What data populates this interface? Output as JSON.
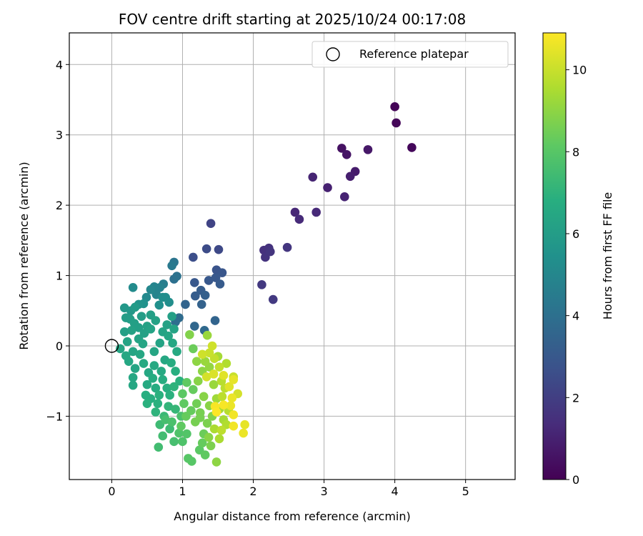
{
  "chart_data": {
    "type": "scatter",
    "title": "FOV centre drift starting at 2025/10/24 00:17:08",
    "xlabel": "Angular distance from reference (arcmin)",
    "ylabel": "Rotation from reference (arcmin)",
    "xlim": [
      -0.6,
      5.7
    ],
    "ylim": [
      -1.9,
      4.45
    ],
    "xticks": [
      0,
      1,
      2,
      3,
      4,
      5
    ],
    "xtick_labels": [
      "0",
      "1",
      "2",
      "3",
      "4",
      "5"
    ],
    "yticks": [
      -1,
      0,
      1,
      2,
      3,
      4
    ],
    "ytick_labels": [
      "−1",
      "0",
      "1",
      "2",
      "3",
      "4"
    ],
    "grid": true,
    "legend": {
      "position": "top-right",
      "entries": [
        {
          "label": "Reference platepar",
          "marker": "open-circle",
          "x": 0,
          "y": 0
        }
      ]
    },
    "colorbar": {
      "label": "Hours from first FF file",
      "colormap": "viridis",
      "range": [
        0,
        10.9
      ],
      "ticks": [
        0,
        2,
        4,
        6,
        8,
        10
      ],
      "tick_labels": [
        "0",
        "2",
        "4",
        "6",
        "8",
        "10"
      ]
    },
    "series": [
      {
        "points": [
          [
            4.0,
            3.4,
            0.1
          ],
          [
            4.02,
            3.17,
            0.15
          ],
          [
            4.24,
            2.82,
            0.2
          ],
          [
            3.25,
            2.81,
            0.5
          ],
          [
            3.32,
            2.72,
            0.6
          ],
          [
            3.62,
            2.79,
            0.7
          ],
          [
            3.44,
            2.48,
            0.8
          ],
          [
            3.37,
            2.41,
            0.9
          ],
          [
            3.05,
            2.25,
            1.0
          ],
          [
            3.29,
            2.12,
            1.05
          ],
          [
            2.84,
            2.4,
            1.1
          ],
          [
            2.59,
            1.9,
            1.2
          ],
          [
            2.89,
            1.9,
            1.25
          ],
          [
            2.65,
            1.8,
            1.3
          ],
          [
            2.15,
            1.36,
            1.5
          ],
          [
            2.22,
            1.39,
            1.55
          ],
          [
            2.17,
            1.26,
            1.6
          ],
          [
            2.24,
            1.34,
            1.65
          ],
          [
            2.48,
            1.4,
            1.7
          ],
          [
            2.12,
            0.87,
            1.8
          ],
          [
            2.28,
            0.66,
            1.85
          ],
          [
            1.4,
            1.74,
            2.2
          ],
          [
            1.51,
            1.37,
            2.4
          ],
          [
            1.34,
            1.38,
            2.5
          ],
          [
            1.15,
            1.26,
            2.6
          ],
          [
            1.48,
            1.08,
            2.8
          ],
          [
            1.56,
            1.04,
            2.9
          ],
          [
            1.47,
            0.97,
            3.0
          ],
          [
            1.37,
            0.93,
            3.0
          ],
          [
            1.53,
            0.88,
            3.1
          ],
          [
            1.17,
            0.9,
            3.0
          ],
          [
            1.26,
            0.79,
            3.2
          ],
          [
            1.32,
            0.72,
            3.3
          ],
          [
            1.18,
            0.71,
            3.2
          ],
          [
            1.27,
            0.59,
            3.4
          ],
          [
            1.04,
            0.59,
            3.5
          ],
          [
            1.46,
            0.36,
            3.5
          ],
          [
            1.17,
            0.28,
            3.6
          ],
          [
            1.31,
            0.22,
            3.7
          ],
          [
            0.95,
            0.4,
            3.8
          ],
          [
            0.9,
            0.34,
            3.9
          ],
          [
            0.88,
            0.95,
            4.0
          ],
          [
            0.92,
            0.99,
            4.1
          ],
          [
            0.88,
            1.19,
            4.2
          ],
          [
            0.85,
            1.14,
            4.4
          ],
          [
            0.73,
            0.88,
            4.6
          ],
          [
            0.68,
            0.83,
            4.8
          ],
          [
            0.63,
            0.73,
            4.9
          ],
          [
            0.55,
            0.8,
            5.0
          ],
          [
            0.6,
            0.84,
            4.9
          ],
          [
            0.49,
            0.69,
            5.1
          ],
          [
            0.3,
            0.83,
            5.2
          ],
          [
            0.76,
            0.69,
            5.3
          ],
          [
            0.81,
            0.62,
            5.3
          ],
          [
            0.72,
            0.69,
            5.3
          ],
          [
            0.67,
            0.58,
            5.4
          ],
          [
            0.45,
            0.6,
            5.5
          ],
          [
            0.38,
            0.59,
            5.6
          ],
          [
            0.18,
            0.54,
            5.8
          ],
          [
            0.27,
            0.5,
            5.8
          ],
          [
            0.33,
            0.55,
            5.9
          ],
          [
            0.2,
            0.4,
            6.0
          ],
          [
            0.26,
            0.38,
            6.0
          ],
          [
            0.32,
            0.32,
            6.1
          ],
          [
            0.18,
            0.2,
            6.1
          ],
          [
            0.28,
            0.22,
            6.2
          ],
          [
            0.22,
            0.06,
            6.3
          ],
          [
            0.38,
            0.1,
            6.3
          ],
          [
            0.46,
            0.18,
            6.2
          ],
          [
            0.55,
            0.24,
            6.3
          ],
          [
            0.44,
            0.03,
            6.4
          ],
          [
            0.3,
            -0.08,
            6.4
          ],
          [
            0.12,
            -0.04,
            6.4
          ],
          [
            0.2,
            -0.14,
            6.5
          ],
          [
            0.24,
            -0.22,
            6.5
          ],
          [
            0.4,
            -0.12,
            6.5
          ],
          [
            0.33,
            -0.32,
            6.4
          ],
          [
            0.3,
            -0.45,
            6.5
          ],
          [
            0.3,
            -0.56,
            6.5
          ],
          [
            0.45,
            -0.25,
            6.6
          ],
          [
            0.52,
            -0.38,
            6.5
          ],
          [
            0.6,
            -0.28,
            6.6
          ],
          [
            0.5,
            -0.55,
            6.6
          ],
          [
            0.58,
            -0.46,
            6.7
          ],
          [
            0.62,
            -0.6,
            6.7
          ],
          [
            0.48,
            -0.7,
            6.8
          ],
          [
            0.55,
            -0.75,
            6.8
          ],
          [
            0.65,
            -0.82,
            6.9
          ],
          [
            0.5,
            -0.82,
            6.9
          ],
          [
            0.62,
            -0.94,
            7.0
          ],
          [
            0.67,
            -0.7,
            6.9
          ],
          [
            0.72,
            -0.48,
            6.7
          ],
          [
            0.78,
            -0.6,
            6.8
          ],
          [
            0.82,
            -0.7,
            6.9
          ],
          [
            0.7,
            -0.36,
            6.6
          ],
          [
            0.75,
            -0.2,
            6.5
          ],
          [
            0.6,
            -0.08,
            6.4
          ],
          [
            0.68,
            0.04,
            6.3
          ],
          [
            0.55,
            0.44,
            6.1
          ],
          [
            0.62,
            0.36,
            6.2
          ],
          [
            0.5,
            0.28,
            6.2
          ],
          [
            0.42,
            0.42,
            6.0
          ],
          [
            0.38,
            0.26,
            6.1
          ],
          [
            0.72,
            0.2,
            6.3
          ],
          [
            0.78,
            0.3,
            6.2
          ],
          [
            0.85,
            0.42,
            6.1
          ],
          [
            0.88,
            0.24,
            6.3
          ],
          [
            0.8,
            0.14,
            6.4
          ],
          [
            0.86,
            0.04,
            6.5
          ],
          [
            0.92,
            -0.08,
            6.6
          ],
          [
            0.84,
            -0.24,
            6.7
          ],
          [
            0.9,
            -0.36,
            6.8
          ],
          [
            0.96,
            -0.5,
            6.9
          ],
          [
            0.88,
            -0.58,
            7.0
          ],
          [
            0.8,
            -0.86,
            7.1
          ],
          [
            0.9,
            -0.9,
            7.2
          ],
          [
            0.74,
            -1.0,
            7.3
          ],
          [
            0.68,
            -1.12,
            7.4
          ],
          [
            0.82,
            -1.18,
            7.4
          ],
          [
            0.72,
            -1.28,
            7.5
          ],
          [
            0.66,
            -1.44,
            7.5
          ],
          [
            0.88,
            -1.36,
            7.6
          ],
          [
            0.76,
            -1.05,
            7.6
          ],
          [
            0.85,
            -1.08,
            7.7
          ],
          [
            0.98,
            -1.0,
            7.7
          ],
          [
            0.95,
            -1.24,
            7.8
          ],
          [
            1.0,
            -1.36,
            7.8
          ],
          [
            1.06,
            -1.25,
            7.9
          ],
          [
            1.08,
            -1.6,
            8.0
          ],
          [
            1.13,
            -1.64,
            8.0
          ],
          [
            1.24,
            -1.48,
            8.1
          ],
          [
            1.32,
            -1.55,
            8.2
          ],
          [
            1.28,
            -1.38,
            8.3
          ],
          [
            1.3,
            -1.25,
            8.4
          ],
          [
            0.98,
            -1.14,
            8.2
          ],
          [
            1.05,
            -1.0,
            8.3
          ],
          [
            1.12,
            -0.92,
            8.3
          ],
          [
            1.02,
            -0.82,
            8.2
          ],
          [
            1.0,
            -0.68,
            8.1
          ],
          [
            1.06,
            -0.52,
            8.2
          ],
          [
            1.15,
            -0.62,
            8.3
          ],
          [
            1.2,
            -0.82,
            8.5
          ],
          [
            1.25,
            -0.95,
            8.6
          ],
          [
            1.18,
            -1.08,
            8.6
          ],
          [
            1.35,
            -1.1,
            8.7
          ],
          [
            1.42,
            -1.0,
            8.8
          ],
          [
            1.38,
            -0.85,
            8.9
          ],
          [
            1.3,
            -0.72,
            8.9
          ],
          [
            1.22,
            -0.5,
            8.9
          ],
          [
            1.28,
            -0.36,
            9.0
          ],
          [
            1.2,
            -0.22,
            9.0
          ],
          [
            1.15,
            -0.04,
            8.4
          ],
          [
            1.38,
            -0.3,
            9.1
          ],
          [
            1.44,
            -0.55,
            9.2
          ],
          [
            1.48,
            -0.75,
            9.3
          ],
          [
            1.52,
            -0.9,
            9.4
          ],
          [
            1.58,
            -1.05,
            9.4
          ],
          [
            1.45,
            -1.18,
            9.5
          ],
          [
            1.52,
            -1.32,
            9.5
          ],
          [
            1.62,
            -1.12,
            9.6
          ],
          [
            1.65,
            -0.92,
            9.7
          ],
          [
            1.56,
            -0.72,
            9.8
          ],
          [
            1.6,
            -0.6,
            9.8
          ],
          [
            1.55,
            -0.5,
            9.7
          ],
          [
            1.52,
            -0.3,
            9.9
          ],
          [
            1.45,
            -0.18,
            9.9
          ],
          [
            1.38,
            -0.1,
            10.0
          ],
          [
            1.28,
            -0.12,
            10.1
          ],
          [
            1.42,
            0.0,
            10.1
          ],
          [
            1.35,
            0.15,
            9.2
          ],
          [
            1.1,
            0.16,
            8.8
          ],
          [
            1.34,
            -0.44,
            10.2
          ],
          [
            1.44,
            -0.4,
            10.3
          ],
          [
            1.58,
            -0.42,
            10.4
          ],
          [
            1.66,
            -0.58,
            10.4
          ],
          [
            1.72,
            -0.48,
            10.5
          ],
          [
            1.7,
            -0.74,
            10.6
          ],
          [
            1.68,
            -0.85,
            10.6
          ],
          [
            1.72,
            -0.98,
            10.7
          ],
          [
            1.58,
            -0.84,
            10.8
          ],
          [
            1.46,
            -0.86,
            10.8
          ],
          [
            1.48,
            -0.94,
            10.9
          ],
          [
            1.72,
            -1.14,
            10.7
          ],
          [
            1.88,
            -1.12,
            10.5
          ],
          [
            1.86,
            -1.24,
            10.6
          ],
          [
            1.78,
            -0.68,
            10.2
          ],
          [
            1.72,
            -0.44,
            10.0
          ],
          [
            1.62,
            -0.25,
            9.6
          ],
          [
            1.5,
            -0.15,
            9.4
          ],
          [
            1.55,
            -1.2,
            9.8
          ],
          [
            1.48,
            -1.65,
            9.0
          ],
          [
            1.37,
            -1.3,
            8.9
          ],
          [
            1.4,
            -1.42,
            8.7
          ],
          [
            1.25,
            -1.02,
            8.6
          ],
          [
            1.32,
            -0.22,
            9.2
          ]
        ]
      }
    ]
  }
}
